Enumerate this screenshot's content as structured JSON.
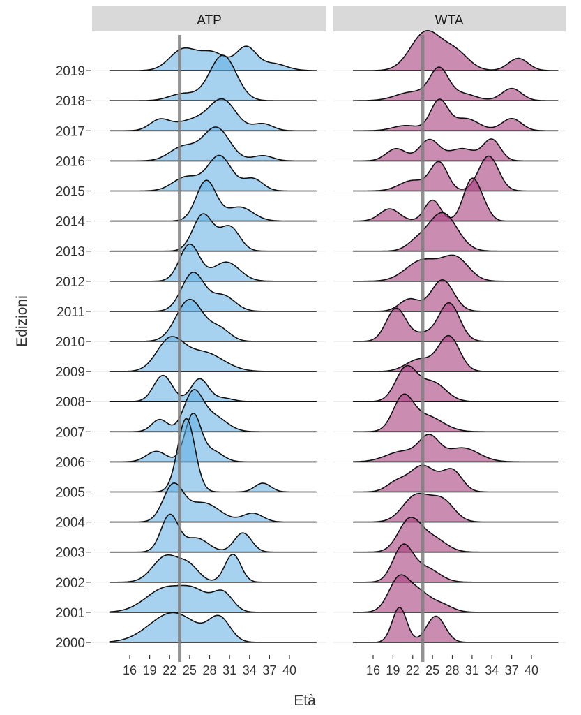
{
  "chart_data": {
    "type": "ridgeline",
    "xlabel": "Età",
    "ylabel": "Edizioni",
    "x_ticks": [
      16,
      19,
      22,
      25,
      28,
      31,
      34,
      37,
      40
    ],
    "x_tick_labels": [
      "16",
      "19",
      "22",
      "25",
      "28",
      "31",
      "34",
      "37",
      "40"
    ],
    "x_range": [
      13,
      44
    ],
    "editions": [
      "2000",
      "2001",
      "2002",
      "2003",
      "2004",
      "2005",
      "2006",
      "2007",
      "2008",
      "2009",
      "2010",
      "2011",
      "2012",
      "2013",
      "2014",
      "2015",
      "2016",
      "2017",
      "2018",
      "2019"
    ],
    "grid": true,
    "legend": "none",
    "colors": {
      "ATP": "#5dade2",
      "WTA": "#a8407f",
      "reference_line": "#7f7f7f",
      "strip": "#d9d9d9"
    },
    "panels": [
      {
        "label": "ATP",
        "reference_line_x": 23.5,
        "series": [
          {
            "edition": "2000",
            "peaks": [
              [
                22.5,
                3.5,
                0.85
              ],
              [
                29.5,
                1.6,
                0.65
              ]
            ]
          },
          {
            "edition": "2001",
            "peaks": [
              [
                21.5,
                3.0,
                0.7
              ],
              [
                26.0,
                2.0,
                0.45
              ],
              [
                30.0,
                1.5,
                0.55
              ]
            ]
          },
          {
            "edition": "2002",
            "peaks": [
              [
                21.5,
                2.0,
                0.75
              ],
              [
                25.0,
                1.5,
                0.4
              ],
              [
                31.5,
                1.2,
                0.8
              ]
            ]
          },
          {
            "edition": "2003",
            "peaks": [
              [
                22.0,
                1.3,
                1.05
              ],
              [
                26.0,
                1.8,
                0.4
              ],
              [
                33.0,
                1.3,
                0.55
              ]
            ]
          },
          {
            "edition": "2004",
            "peaks": [
              [
                22.5,
                1.5,
                1.0
              ],
              [
                27.0,
                2.5,
                0.55
              ],
              [
                34.5,
                1.5,
                0.25
              ]
            ]
          },
          {
            "edition": "2005",
            "peaks": [
              [
                24.5,
                1.3,
                2.1
              ],
              [
                36.0,
                1.2,
                0.25
              ]
            ]
          },
          {
            "edition": "2006",
            "peaks": [
              [
                20.0,
                1.5,
                0.3
              ],
              [
                25.5,
                1.2,
                1.35
              ],
              [
                28.5,
                1.5,
                0.3
              ]
            ]
          },
          {
            "edition": "2007",
            "peaks": [
              [
                20.5,
                1.2,
                0.35
              ],
              [
                25.5,
                1.4,
                1.05
              ],
              [
                28.5,
                2.0,
                0.45
              ]
            ]
          },
          {
            "edition": "2008",
            "peaks": [
              [
                21.0,
                1.4,
                0.75
              ],
              [
                26.5,
                1.3,
                0.65
              ],
              [
                30.0,
                1.5,
                0.1
              ]
            ]
          },
          {
            "edition": "2009",
            "peaks": [
              [
                22.0,
                2.0,
                0.85
              ],
              [
                27.0,
                3.0,
                0.55
              ]
            ]
          },
          {
            "edition": "2010",
            "peaks": [
              [
                25.0,
                2.0,
                1.2
              ],
              [
                29.5,
                1.6,
                0.35
              ]
            ]
          },
          {
            "edition": "2011",
            "peaks": [
              [
                25.5,
                1.7,
                1.1
              ],
              [
                30.0,
                1.8,
                0.45
              ]
            ]
          },
          {
            "edition": "2012",
            "peaks": [
              [
                25.0,
                1.5,
                1.05
              ],
              [
                30.5,
                2.0,
                0.55
              ]
            ]
          },
          {
            "edition": "2013",
            "peaks": [
              [
                27.0,
                1.5,
                1.05
              ],
              [
                31.0,
                1.5,
                0.7
              ]
            ]
          },
          {
            "edition": "2014",
            "peaks": [
              [
                27.5,
                1.5,
                1.15
              ],
              [
                32.5,
                2.0,
                0.4
              ]
            ]
          },
          {
            "edition": "2015",
            "peaks": [
              [
                24.5,
                2.0,
                0.4
              ],
              [
                29.5,
                1.8,
                1.0
              ],
              [
                34.5,
                1.5,
                0.35
              ]
            ]
          },
          {
            "edition": "2016",
            "peaks": [
              [
                24.0,
                2.0,
                0.4
              ],
              [
                29.0,
                2.0,
                0.95
              ],
              [
                36.0,
                1.5,
                0.15
              ]
            ]
          },
          {
            "edition": "2017",
            "peaks": [
              [
                20.5,
                1.5,
                0.3
              ],
              [
                25.5,
                2.5,
                0.3
              ],
              [
                30.0,
                2.0,
                0.85
              ],
              [
                36.0,
                1.5,
                0.2
              ]
            ]
          },
          {
            "edition": "2018",
            "peaks": [
              [
                24.0,
                2.0,
                0.2
              ],
              [
                30.0,
                2.0,
                1.3
              ]
            ]
          },
          {
            "edition": "2019",
            "peaks": [
              [
                24.0,
                2.0,
                0.6
              ],
              [
                28.5,
                2.0,
                0.5
              ],
              [
                33.5,
                1.5,
                0.65
              ],
              [
                37.5,
                2.0,
                0.2
              ]
            ]
          }
        ]
      },
      {
        "label": "WTA",
        "reference_line_x": 23.5,
        "series": [
          {
            "edition": "2000",
            "peaks": [
              [
                20.0,
                1.1,
                1.0
              ],
              [
                25.5,
                1.4,
                0.75
              ]
            ]
          },
          {
            "edition": "2001",
            "peaks": [
              [
                20.0,
                1.6,
                1.0
              ],
              [
                23.0,
                1.5,
                0.45
              ],
              [
                26.0,
                1.8,
                0.25
              ]
            ]
          },
          {
            "edition": "2002",
            "peaks": [
              [
                20.5,
                1.5,
                1.0
              ],
              [
                24.0,
                2.0,
                0.4
              ]
            ]
          },
          {
            "edition": "2003",
            "peaks": [
              [
                21.5,
                1.7,
                0.9
              ],
              [
                25.0,
                2.0,
                0.4
              ]
            ]
          },
          {
            "edition": "2004",
            "peaks": [
              [
                22.5,
                2.0,
                0.75
              ],
              [
                26.5,
                1.8,
                0.6
              ]
            ]
          },
          {
            "edition": "2005",
            "peaks": [
              [
                19.5,
                1.5,
                0.25
              ],
              [
                23.5,
                2.0,
                0.75
              ],
              [
                28.0,
                1.5,
                0.6
              ]
            ]
          },
          {
            "edition": "2006",
            "peaks": [
              [
                20.5,
                2.5,
                0.3
              ],
              [
                24.5,
                1.5,
                0.65
              ],
              [
                29.5,
                2.5,
                0.4
              ]
            ]
          },
          {
            "edition": "2007",
            "peaks": [
              [
                20.5,
                1.5,
                0.9
              ],
              [
                24.0,
                2.5,
                0.45
              ]
            ]
          },
          {
            "edition": "2008",
            "peaks": [
              [
                21.0,
                1.6,
                0.95
              ],
              [
                25.0,
                2.0,
                0.55
              ]
            ]
          },
          {
            "edition": "2009",
            "peaks": [
              [
                23.0,
                2.0,
                0.35
              ],
              [
                27.5,
                1.6,
                1.0
              ]
            ]
          },
          {
            "edition": "2010",
            "peaks": [
              [
                19.5,
                1.5,
                0.95
              ],
              [
                23.5,
                1.5,
                0.2
              ],
              [
                27.5,
                1.6,
                1.1
              ]
            ]
          },
          {
            "edition": "2011",
            "peaks": [
              [
                21.5,
                1.5,
                0.35
              ],
              [
                26.5,
                1.7,
                0.9
              ]
            ]
          },
          {
            "edition": "2012",
            "peaks": [
              [
                23.5,
                2.5,
                0.6
              ],
              [
                28.5,
                2.0,
                0.65
              ]
            ]
          },
          {
            "edition": "2013",
            "peaks": [
              [
                22.5,
                1.5,
                0.2
              ],
              [
                26.5,
                2.2,
                1.1
              ]
            ]
          },
          {
            "edition": "2014",
            "peaks": [
              [
                18.5,
                1.5,
                0.35
              ],
              [
                25.0,
                1.2,
                0.6
              ],
              [
                31.0,
                1.3,
                1.2
              ],
              [
                33.0,
                1.0,
                0.2
              ]
            ]
          },
          {
            "edition": "2015",
            "peaks": [
              [
                22.0,
                2.0,
                0.3
              ],
              [
                26.0,
                1.3,
                0.8
              ],
              [
                33.5,
                1.5,
                1.0
              ]
            ]
          },
          {
            "edition": "2016",
            "peaks": [
              [
                19.5,
                1.5,
                0.35
              ],
              [
                24.5,
                1.5,
                0.6
              ],
              [
                29.5,
                2.0,
                0.35
              ],
              [
                34.0,
                1.3,
                0.6
              ]
            ]
          },
          {
            "edition": "2017",
            "peaks": [
              [
                21.0,
                2.0,
                0.15
              ],
              [
                26.0,
                1.3,
                0.85
              ],
              [
                30.0,
                2.0,
                0.35
              ],
              [
                37.0,
                1.5,
                0.35
              ]
            ]
          },
          {
            "edition": "2018",
            "peaks": [
              [
                22.0,
                2.5,
                0.25
              ],
              [
                26.0,
                1.4,
                0.85
              ],
              [
                29.5,
                2.0,
                0.2
              ],
              [
                37.0,
                1.5,
                0.35
              ]
            ]
          },
          {
            "edition": "2019",
            "peaks": [
              [
                24.0,
                2.3,
                1.1
              ],
              [
                28.5,
                2.0,
                0.5
              ],
              [
                38.0,
                1.5,
                0.35
              ]
            ]
          }
        ]
      }
    ]
  }
}
